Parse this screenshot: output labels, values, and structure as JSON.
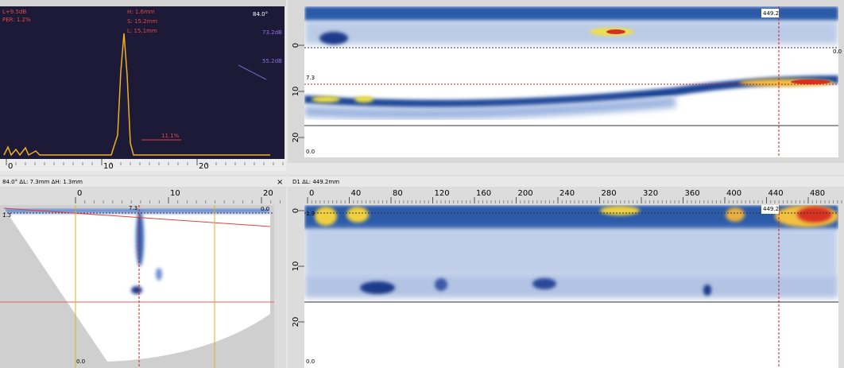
{
  "ascan": {
    "readouts_left": [
      "L+9.5dB",
      "PER: 1.2%"
    ],
    "readouts_mid": [
      "H: 1.6mm",
      "S: 15.2mm",
      "L: 15.1mm"
    ],
    "angle": "84.0°",
    "gain_marks": [
      "73.2dB",
      "55.2dB"
    ],
    "gate_label": "11.1%",
    "x_axis": [
      "0",
      "10",
      "20"
    ]
  },
  "bscan": {
    "cursor_label": "449.2",
    "ref_label": "7.3",
    "zero_right": "0.0",
    "zero_bottom": "0.0",
    "depth_axis": [
      "0",
      "10",
      "20"
    ]
  },
  "sscan": {
    "header": "84.0°  ΔL: 7.3mm  ΔH: 1.3mm",
    "close": "×",
    "x_axis": [
      "0",
      "10",
      "20"
    ],
    "top_label": "7.3",
    "right_label": "0.0",
    "left_label": "1.3",
    "bottom_label": "0.0"
  },
  "cscan": {
    "header": "D1  ΔL: 449.2mm",
    "x_axis": [
      "0",
      "40",
      "80",
      "120",
      "160",
      "200",
      "240",
      "280",
      "320",
      "360",
      "400",
      "440",
      "480"
    ],
    "cursor_label": "449.2",
    "left_label": "1.3",
    "bottom_label": "0.0",
    "depth_axis": [
      "0",
      "10",
      "20"
    ]
  }
}
